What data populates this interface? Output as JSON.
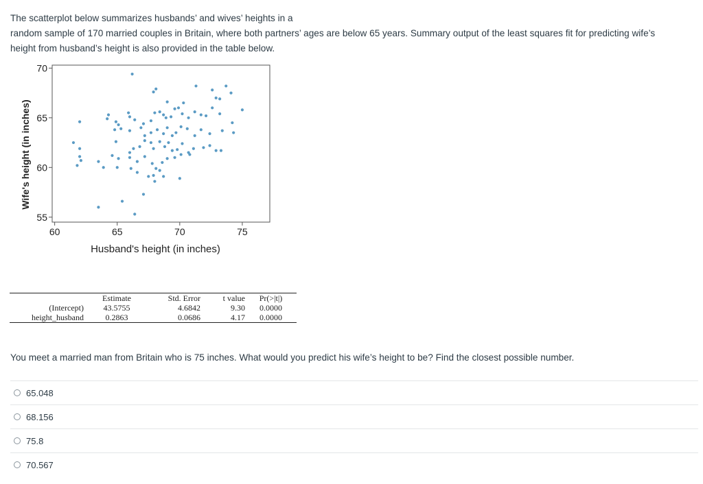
{
  "intro": {
    "line1": "The scatterplot below summarizes husbands’ and wives’ heights in a",
    "line2": "random sample of 170 married couples in Britain, where both partners’ ages are below 65 years. Summary output of the least squares fit for predicting wife’s",
    "line3": "height from husband’s height is also provided in the table below."
  },
  "chart_data": {
    "type": "scatter",
    "xlabel": "Husband's height (in inches)",
    "ylabel": "Wife's height (in inches)",
    "xlim": [
      59.8,
      77.2
    ],
    "ylim": [
      54.5,
      70.3
    ],
    "xticks": [
      60,
      65,
      70,
      75
    ],
    "yticks": [
      55,
      60,
      65,
      70
    ],
    "grid": false,
    "color": "#5b9bc4",
    "points": [
      [
        66.2,
        69.4
      ],
      [
        67.9,
        67.6
      ],
      [
        68.1,
        67.9
      ],
      [
        69.0,
        66.6
      ],
      [
        70.3,
        66.5
      ],
      [
        71.3,
        68.2
      ],
      [
        72.6,
        67.8
      ],
      [
        73.7,
        68.2
      ],
      [
        73.2,
        66.9
      ],
      [
        72.9,
        67.0
      ],
      [
        74.1,
        67.5
      ],
      [
        62.0,
        64.6
      ],
      [
        64.2,
        64.9
      ],
      [
        64.3,
        65.3
      ],
      [
        64.9,
        64.6
      ],
      [
        65.1,
        64.3
      ],
      [
        65.9,
        65.5
      ],
      [
        66.0,
        65.1
      ],
      [
        66.4,
        64.8
      ],
      [
        67.1,
        64.4
      ],
      [
        67.7,
        64.7
      ],
      [
        68.0,
        65.5
      ],
      [
        68.4,
        65.6
      ],
      [
        68.7,
        65.3
      ],
      [
        68.9,
        65.0
      ],
      [
        69.3,
        65.1
      ],
      [
        69.6,
        65.9
      ],
      [
        69.9,
        66.0
      ],
      [
        70.2,
        65.4
      ],
      [
        70.7,
        65.0
      ],
      [
        71.2,
        65.6
      ],
      [
        71.7,
        65.3
      ],
      [
        72.1,
        65.2
      ],
      [
        72.6,
        66.0
      ],
      [
        73.2,
        65.4
      ],
      [
        74.2,
        64.5
      ],
      [
        75.0,
        65.8
      ],
      [
        64.8,
        63.8
      ],
      [
        65.3,
        63.9
      ],
      [
        66.0,
        63.7
      ],
      [
        66.9,
        64.0
      ],
      [
        67.2,
        63.2
      ],
      [
        67.7,
        63.5
      ],
      [
        68.2,
        63.8
      ],
      [
        68.7,
        63.4
      ],
      [
        69.0,
        64.0
      ],
      [
        69.4,
        63.2
      ],
      [
        69.7,
        63.5
      ],
      [
        70.1,
        64.1
      ],
      [
        70.6,
        63.9
      ],
      [
        71.2,
        63.2
      ],
      [
        71.7,
        63.8
      ],
      [
        72.4,
        63.4
      ],
      [
        73.4,
        63.7
      ],
      [
        74.3,
        63.5
      ],
      [
        61.5,
        62.5
      ],
      [
        62.0,
        61.9
      ],
      [
        64.9,
        62.6
      ],
      [
        66.0,
        61.5
      ],
      [
        66.3,
        61.9
      ],
      [
        66.8,
        62.1
      ],
      [
        67.2,
        62.7
      ],
      [
        67.7,
        62.5
      ],
      [
        67.9,
        61.9
      ],
      [
        68.4,
        62.6
      ],
      [
        68.8,
        62.1
      ],
      [
        69.1,
        62.5
      ],
      [
        69.4,
        61.7
      ],
      [
        69.8,
        61.8
      ],
      [
        70.2,
        62.4
      ],
      [
        70.7,
        61.5
      ],
      [
        71.1,
        61.9
      ],
      [
        71.9,
        62.0
      ],
      [
        72.4,
        62.2
      ],
      [
        72.9,
        61.7
      ],
      [
        73.3,
        61.7
      ],
      [
        62.0,
        61.1
      ],
      [
        62.1,
        60.7
      ],
      [
        63.5,
        60.6
      ],
      [
        64.6,
        61.2
      ],
      [
        65.1,
        60.9
      ],
      [
        66.0,
        61.0
      ],
      [
        66.6,
        60.6
      ],
      [
        67.2,
        61.1
      ],
      [
        67.8,
        60.4
      ],
      [
        68.1,
        59.9
      ],
      [
        68.6,
        60.5
      ],
      [
        69.0,
        60.9
      ],
      [
        69.6,
        61.0
      ],
      [
        70.1,
        61.3
      ],
      [
        70.8,
        61.3
      ],
      [
        61.8,
        60.2
      ],
      [
        63.9,
        60.0
      ],
      [
        65.0,
        60.0
      ],
      [
        66.1,
        59.9
      ],
      [
        66.6,
        59.5
      ],
      [
        67.5,
        59.1
      ],
      [
        67.9,
        59.2
      ],
      [
        68.4,
        59.7
      ],
      [
        68.7,
        59.1
      ],
      [
        70.0,
        58.9
      ],
      [
        63.5,
        56.0
      ],
      [
        67.1,
        57.3
      ],
      [
        66.4,
        55.3
      ],
      [
        65.4,
        56.6
      ],
      [
        68.0,
        58.6
      ]
    ]
  },
  "regression_table": {
    "headers": [
      "Estimate",
      "Std. Error",
      "t value",
      "Pr(>|t|)"
    ],
    "rows": [
      {
        "name": "(Intercept)",
        "values": [
          "43.5755",
          "4.6842",
          "9.30",
          "0.0000"
        ]
      },
      {
        "name": "height_husband",
        "values": [
          "0.2863",
          "0.0686",
          "4.17",
          "0.0000"
        ]
      }
    ]
  },
  "question": "You meet a married man from Britain who is 75 inches. What would you predict his wife’s height to be?  Find the closest possible number.",
  "options": [
    "65.048",
    "68.156",
    "75.8",
    "70.567"
  ]
}
